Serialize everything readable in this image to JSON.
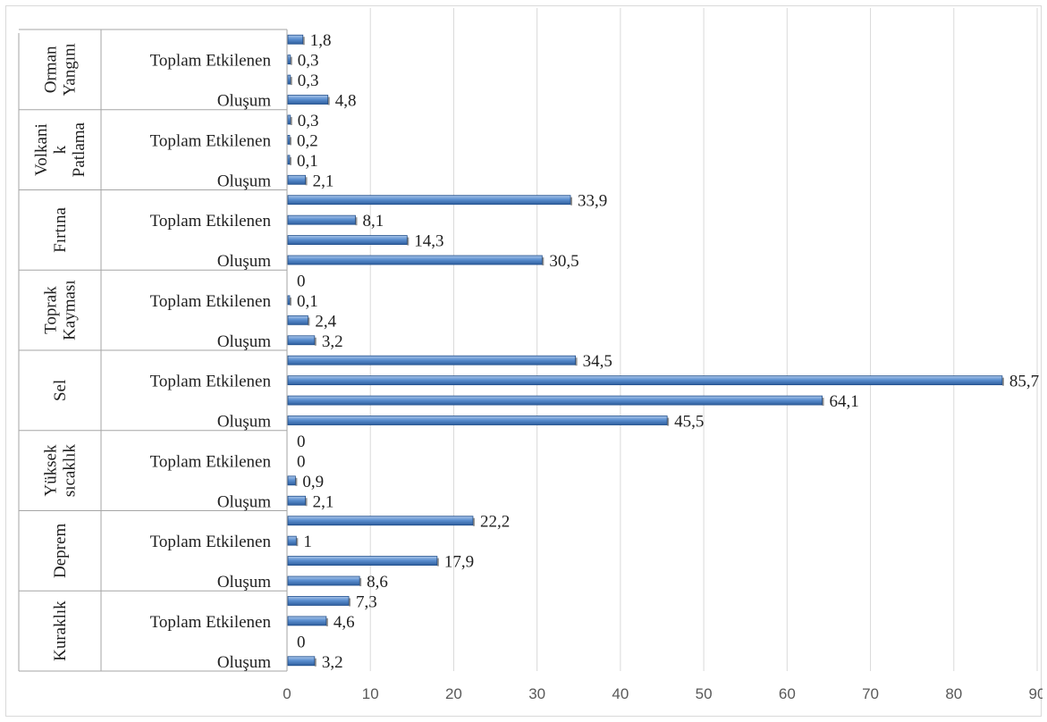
{
  "chart_data": {
    "type": "bar",
    "orientation": "horizontal",
    "xlim": [
      0,
      90
    ],
    "x_ticks": [
      "0",
      "10",
      "20",
      "30",
      "40",
      "50",
      "60",
      "70",
      "80",
      "90"
    ],
    "grid": true,
    "groups": [
      {
        "name": "Kuraklık",
        "name_lines": [
          "Kuraklık"
        ],
        "bars": [
          {
            "label": "Oluşum",
            "value": 3.2,
            "value_label": "3,2"
          },
          {
            "label": "",
            "value": 0,
            "value_label": "0"
          },
          {
            "label": "Toplam Etkilenen",
            "value": 4.6,
            "value_label": "4,6"
          },
          {
            "label": "",
            "value": 7.3,
            "value_label": "7,3"
          }
        ]
      },
      {
        "name": "Deprem",
        "name_lines": [
          "Deprem"
        ],
        "bars": [
          {
            "label": "Oluşum",
            "value": 8.6,
            "value_label": "8,6"
          },
          {
            "label": "",
            "value": 17.9,
            "value_label": "17,9"
          },
          {
            "label": "Toplam Etkilenen",
            "value": 1,
            "value_label": "1"
          },
          {
            "label": "",
            "value": 22.2,
            "value_label": "22,2"
          }
        ]
      },
      {
        "name": "Yüksek sıcaklık",
        "name_lines": [
          "Yüksek",
          "sıcaklık"
        ],
        "bars": [
          {
            "label": "Oluşum",
            "value": 2.1,
            "value_label": "2,1"
          },
          {
            "label": "",
            "value": 0.9,
            "value_label": "0,9"
          },
          {
            "label": "Toplam Etkilenen",
            "value": 0,
            "value_label": "0"
          },
          {
            "label": "",
            "value": 0,
            "value_label": "0"
          }
        ]
      },
      {
        "name": "Sel",
        "name_lines": [
          "Sel"
        ],
        "bars": [
          {
            "label": "Oluşum",
            "value": 45.5,
            "value_label": "45,5"
          },
          {
            "label": "",
            "value": 64.1,
            "value_label": "64,1"
          },
          {
            "label": "Toplam Etkilenen",
            "value": 85.7,
            "value_label": "85,7"
          },
          {
            "label": "",
            "value": 34.5,
            "value_label": "34,5"
          }
        ]
      },
      {
        "name": "Toprak Kayması",
        "name_lines": [
          "Toprak",
          "Kayması"
        ],
        "bars": [
          {
            "label": "Oluşum",
            "value": 3.2,
            "value_label": "3,2"
          },
          {
            "label": "",
            "value": 2.4,
            "value_label": "2,4"
          },
          {
            "label": "Toplam Etkilenen",
            "value": 0.1,
            "value_label": "0,1"
          },
          {
            "label": "",
            "value": 0,
            "value_label": "0"
          }
        ]
      },
      {
        "name": "Fırtına",
        "name_lines": [
          "Fırtına"
        ],
        "bars": [
          {
            "label": "Oluşum",
            "value": 30.5,
            "value_label": "30,5"
          },
          {
            "label": "",
            "value": 14.3,
            "value_label": "14,3"
          },
          {
            "label": "Toplam Etkilenen",
            "value": 8.1,
            "value_label": "8,1"
          },
          {
            "label": "",
            "value": 33.9,
            "value_label": "33,9"
          }
        ]
      },
      {
        "name": "Volkanik Patlama",
        "name_lines": [
          "Volkani",
          "k",
          "Patlama"
        ],
        "bars": [
          {
            "label": "Oluşum",
            "value": 2.1,
            "value_label": "2,1"
          },
          {
            "label": "",
            "value": 0.1,
            "value_label": "0,1"
          },
          {
            "label": "Toplam Etkilenen",
            "value": 0.2,
            "value_label": "0,2"
          },
          {
            "label": "",
            "value": 0.3,
            "value_label": "0,3"
          }
        ]
      },
      {
        "name": "Orman Yangını",
        "name_lines": [
          "Orman",
          "Yangını"
        ],
        "bars": [
          {
            "label": "Oluşum",
            "value": 4.8,
            "value_label": "4,8"
          },
          {
            "label": "",
            "value": 0.3,
            "value_label": "0,3"
          },
          {
            "label": "Toplam Etkilenen",
            "value": 0.3,
            "value_label": "0,3"
          },
          {
            "label": "",
            "value": 1.8,
            "value_label": "1,8"
          }
        ]
      }
    ],
    "colors": {
      "bar_top": "#a9c4e8",
      "bar_mid": "#5b8fd0",
      "bar_bottom": "#2f5f9e",
      "bar_stroke": "#1f4e8c",
      "grid": "#d9d9d9",
      "axis": "#a6a6a6"
    }
  }
}
